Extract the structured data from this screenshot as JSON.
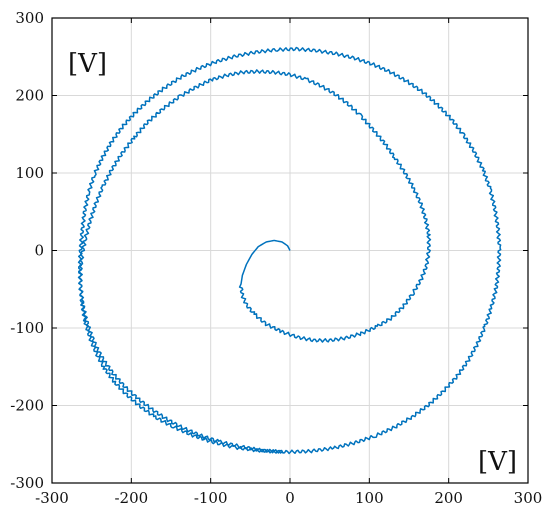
{
  "chart_data": {
    "type": "line",
    "title": "",
    "xlabel": "",
    "ylabel": "",
    "xlim": [
      -300,
      300
    ],
    "ylim": [
      -300,
      300
    ],
    "xticks": [
      -300,
      -200,
      -100,
      0,
      100,
      200,
      300
    ],
    "yticks": [
      -300,
      -200,
      -100,
      0,
      100,
      200,
      300
    ],
    "grid": true,
    "annotations": {
      "y_unit": "[V]",
      "x_unit": "[V]"
    },
    "series": [
      {
        "color": "#0072bd",
        "style": "spiral trajectory with small high-frequency ripple",
        "points": [
          [
            0,
            0
          ],
          [
            -3,
            6
          ],
          [
            -10,
            11
          ],
          [
            -20,
            13
          ],
          [
            -30,
            11
          ],
          [
            -40,
            5
          ],
          [
            -48,
            -5
          ],
          [
            -55,
            -18
          ],
          [
            -60,
            -32
          ],
          [
            -62,
            -45
          ],
          [
            -60,
            -58
          ],
          [
            -55,
            -70
          ],
          [
            -45,
            -82
          ],
          [
            -30,
            -95
          ],
          [
            -10,
            -105
          ],
          [
            10,
            -112
          ],
          [
            30,
            -116
          ],
          [
            50,
            -116
          ],
          [
            70,
            -113
          ],
          [
            90,
            -107
          ],
          [
            110,
            -98
          ],
          [
            128,
            -87
          ],
          [
            143,
            -72
          ],
          [
            155,
            -55
          ],
          [
            165,
            -38
          ],
          [
            172,
            -20
          ],
          [
            175,
            0
          ],
          [
            175,
            20
          ],
          [
            171,
            40
          ],
          [
            165,
            60
          ],
          [
            156,
            80
          ],
          [
            145,
            100
          ],
          [
            132,
            120
          ],
          [
            118,
            140
          ],
          [
            103,
            158
          ],
          [
            88,
            175
          ],
          [
            72,
            190
          ],
          [
            55,
            203
          ],
          [
            38,
            213
          ],
          [
            20,
            221
          ],
          [
            0,
            227
          ],
          [
            -20,
            230
          ],
          [
            -40,
            231
          ],
          [
            -60,
            230
          ],
          [
            -80,
            226
          ],
          [
            -100,
            220
          ],
          [
            -120,
            210
          ],
          [
            -140,
            198
          ],
          [
            -160,
            183
          ],
          [
            -180,
            165
          ],
          [
            -197,
            145
          ],
          [
            -212,
            125
          ],
          [
            -225,
            104
          ],
          [
            -236,
            82
          ],
          [
            -245,
            60
          ],
          [
            -252,
            38
          ],
          [
            -258,
            15
          ],
          [
            -262,
            -5
          ],
          [
            -264,
            -25
          ],
          [
            -264,
            -45
          ],
          [
            -262,
            -65
          ],
          [
            -258,
            -85
          ],
          [
            -252,
            -105
          ],
          [
            -244,
            -125
          ],
          [
            -234,
            -143
          ],
          [
            -222,
            -160
          ],
          [
            -208,
            -176
          ],
          [
            -192,
            -191
          ],
          [
            -174,
            -205
          ],
          [
            -155,
            -218
          ],
          [
            -135,
            -229
          ],
          [
            -112,
            -239
          ],
          [
            -88,
            -247
          ],
          [
            -62,
            -253
          ],
          [
            -35,
            -258
          ],
          [
            -5,
            -260
          ],
          [
            25,
            -259
          ],
          [
            55,
            -255
          ],
          [
            82,
            -248
          ],
          [
            108,
            -239
          ],
          [
            132,
            -228
          ],
          [
            155,
            -214
          ],
          [
            175,
            -199
          ],
          [
            193,
            -182
          ],
          [
            210,
            -163
          ],
          [
            224,
            -143
          ],
          [
            236,
            -121
          ],
          [
            246,
            -98
          ],
          [
            254,
            -73
          ],
          [
            260,
            -48
          ],
          [
            263,
            -22
          ],
          [
            264,
            5
          ],
          [
            262,
            30
          ],
          [
            258,
            55
          ],
          [
            252,
            80
          ],
          [
            243,
            105
          ],
          [
            232,
            128
          ],
          [
            218,
            150
          ],
          [
            203,
            170
          ],
          [
            186,
            188
          ],
          [
            168,
            204
          ],
          [
            148,
            218
          ],
          [
            127,
            230
          ],
          [
            105,
            240
          ],
          [
            82,
            248
          ],
          [
            58,
            254
          ],
          [
            33,
            258
          ],
          [
            8,
            260
          ],
          [
            -18,
            259
          ],
          [
            -43,
            256
          ],
          [
            -68,
            251
          ],
          [
            -92,
            244
          ],
          [
            -115,
            235
          ],
          [
            -137,
            224
          ],
          [
            -158,
            210
          ],
          [
            -177,
            195
          ],
          [
            -195,
            178
          ],
          [
            -211,
            160
          ],
          [
            -225,
            140
          ],
          [
            -237,
            119
          ],
          [
            -247,
            97
          ],
          [
            -254,
            74
          ],
          [
            -259,
            50
          ],
          [
            -262,
            25
          ],
          [
            -264,
            0
          ],
          [
            -265,
            -25
          ],
          [
            -264,
            -48
          ],
          [
            -262,
            -70
          ],
          [
            -258,
            -92
          ],
          [
            -252,
            -113
          ],
          [
            -244,
            -133
          ],
          [
            -234,
            -152
          ],
          [
            -221,
            -170
          ],
          [
            -206,
            -186
          ],
          [
            -189,
            -201
          ],
          [
            -170,
            -215
          ],
          [
            -148,
            -227
          ],
          [
            -124,
            -238
          ],
          [
            -98,
            -247
          ],
          [
            -70,
            -254
          ],
          [
            -40,
            -258
          ],
          [
            -10,
            -260
          ]
        ]
      }
    ]
  }
}
